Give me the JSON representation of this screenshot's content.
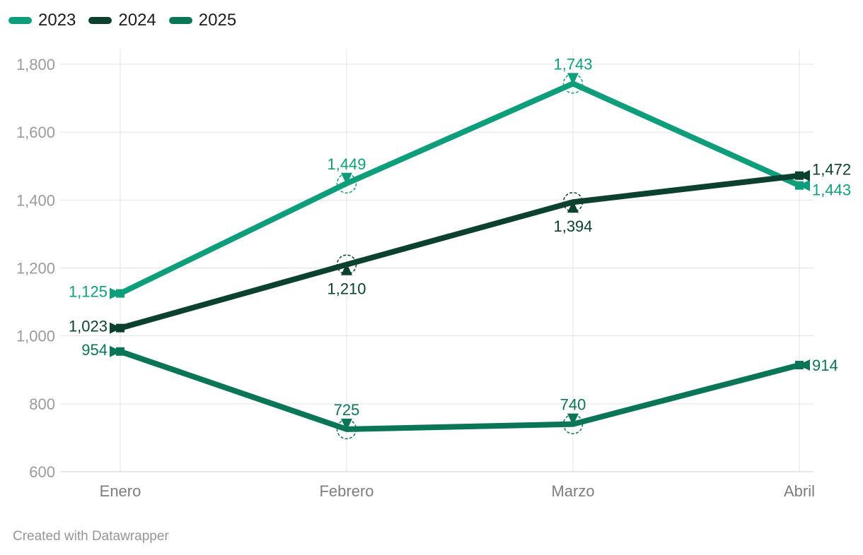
{
  "meta": {
    "footer": "Created with Datawrapper"
  },
  "legend": {
    "items": [
      {
        "label": "2023",
        "color": "#0E9E7B"
      },
      {
        "label": "2024",
        "color": "#0C4130"
      },
      {
        "label": "2025",
        "color": "#0A7557"
      }
    ]
  },
  "chart_data": {
    "type": "line",
    "categories": [
      "Enero",
      "Febrero",
      "Marzo",
      "Abril"
    ],
    "series": [
      {
        "name": "2023",
        "color": "#0E9E7B",
        "values": [
          1125,
          1449,
          1743,
          1443
        ],
        "labels": [
          "1,125",
          "1,449",
          "1,743",
          "1,443"
        ],
        "label_positions": [
          "left",
          "above",
          "above",
          "right"
        ],
        "label_dy": [
          -3,
          0,
          0,
          6
        ]
      },
      {
        "name": "2024",
        "color": "#0C4130",
        "values": [
          1023,
          1210,
          1394,
          1472
        ],
        "labels": [
          "1,023",
          "1,210",
          "1,394",
          "1,472"
        ],
        "label_positions": [
          "left",
          "below",
          "below",
          "right"
        ],
        "label_dy": [
          -3,
          0,
          0,
          -9
        ]
      },
      {
        "name": "2025",
        "color": "#0A7557",
        "values": [
          954,
          725,
          740,
          914
        ],
        "labels": [
          "954",
          "725",
          "740",
          "914"
        ],
        "label_positions": [
          "left",
          "above",
          "above",
          "right"
        ],
        "label_dy": [
          -3,
          0,
          0,
          0
        ]
      }
    ],
    "y_ticks": [
      600,
      800,
      1000,
      1200,
      1400,
      1600,
      1800
    ],
    "y_tick_labels": [
      "600",
      "800",
      "1,000",
      "1,200",
      "1,400",
      "1,600",
      "1,800"
    ],
    "ylim": [
      600,
      1800
    ],
    "xlabel": "",
    "ylabel": "",
    "title": "",
    "grid": true,
    "legend_position": "top-left",
    "colors": {
      "grid": "#e3e3e3",
      "baseline": "#d2d2d2",
      "y_tick_text": "#9b9b9b",
      "x_tick_text": "#7d7d7d"
    }
  }
}
